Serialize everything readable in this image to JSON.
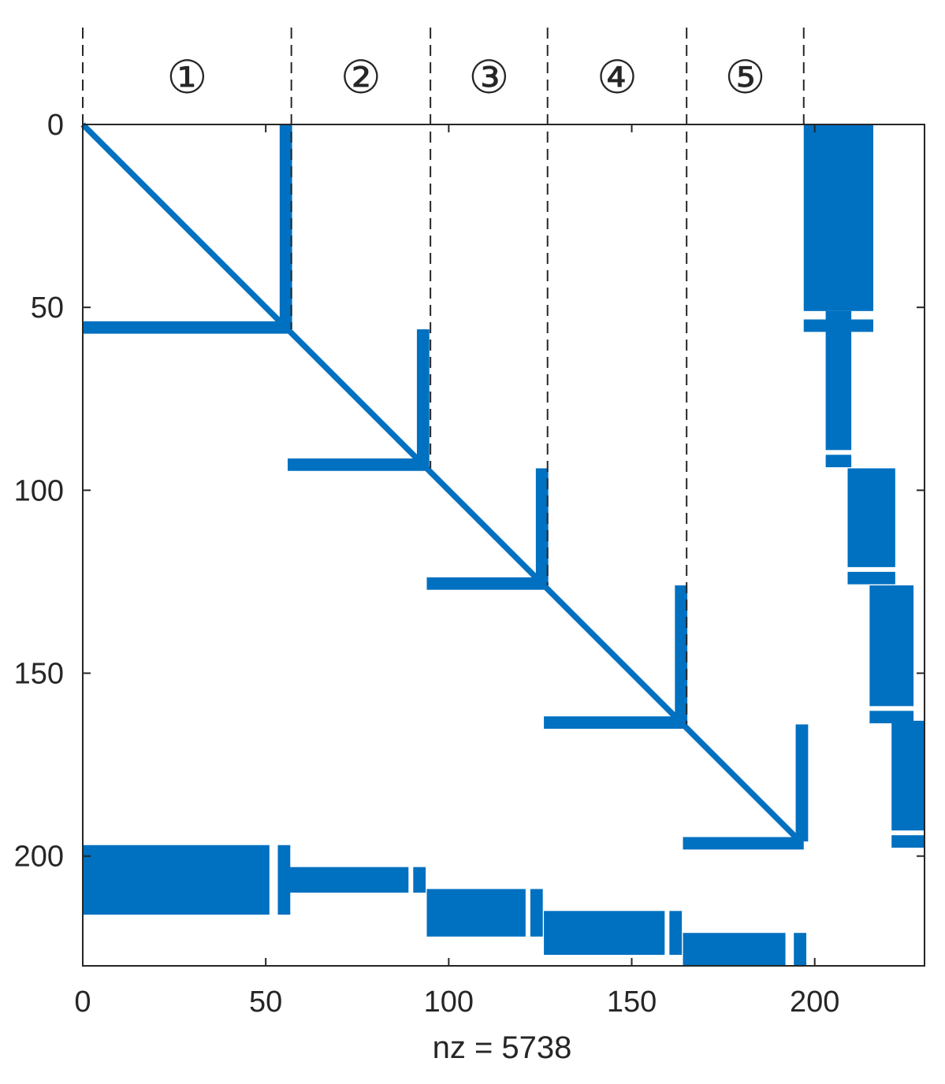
{
  "chart_data": {
    "type": "spy",
    "xlabel": "nz = 5738",
    "xlim": [
      0,
      230
    ],
    "ylim": [
      0,
      230
    ],
    "y_reversed": true,
    "xticks": [
      0,
      50,
      100,
      150,
      200
    ],
    "yticks": [
      0,
      50,
      100,
      150,
      200
    ],
    "xtick_labels": [
      "0",
      "50",
      "100",
      "150",
      "200"
    ],
    "ytick_labels": [
      "0",
      "50",
      "100",
      "150",
      "200"
    ],
    "grid": false,
    "legend": "none",
    "marker_color": "#0070c0",
    "section_boundaries": [
      0,
      57,
      95,
      127,
      165,
      197
    ],
    "section_labels": [
      "①",
      "②",
      "③",
      "④",
      "⑤"
    ],
    "diagonal": {
      "from": 0,
      "to": 196
    },
    "hub_columns": [
      {
        "col": 55.5,
        "row_from": 0,
        "row_to": 56
      },
      {
        "col": 93,
        "row_from": 56,
        "row_to": 94
      },
      {
        "col": 125.5,
        "row_from": 94,
        "row_to": 126
      },
      {
        "col": 163.5,
        "row_from": 126,
        "row_to": 164
      },
      {
        "col": 196.5,
        "row_from": 164,
        "row_to": 196
      }
    ],
    "hub_rows": [
      {
        "row": 55.5,
        "col_from": 0,
        "col_to": 56
      },
      {
        "row": 93,
        "col_from": 56,
        "col_to": 94
      },
      {
        "row": 125.5,
        "col_from": 94,
        "col_to": 126
      },
      {
        "row": 163.5,
        "col_from": 126,
        "col_to": 164
      },
      {
        "row": 196.5,
        "col_from": 164,
        "col_to": 197
      }
    ],
    "right_blocks": [
      {
        "col_from": 197,
        "col_to": 216,
        "row_from": 0,
        "row_to": 51
      },
      {
        "col_from": 203,
        "col_to": 210,
        "row_from": 51,
        "row_to": 89
      },
      {
        "col_from": 209,
        "col_to": 222,
        "row_from": 94,
        "row_to": 121
      },
      {
        "col_from": 215,
        "col_to": 227,
        "row_from": 126,
        "row_to": 159
      },
      {
        "col_from": 221,
        "col_to": 230,
        "row_from": 163,
        "row_to": 193
      }
    ],
    "right_block_strips": [
      {
        "col_from": 197,
        "col_to": 216,
        "row": 55
      },
      {
        "col_from": 203,
        "col_to": 210,
        "row": 92
      },
      {
        "col_from": 209,
        "col_to": 222,
        "row": 124
      },
      {
        "col_from": 215,
        "col_to": 227,
        "row": 162
      },
      {
        "col_from": 221,
        "col_to": 230,
        "row": 196
      }
    ],
    "bottom_blocks": [
      {
        "col_from": 0,
        "col_to": 51,
        "row_from": 197,
        "row_to": 216
      },
      {
        "col_from": 56,
        "col_to": 89,
        "row_from": 203,
        "row_to": 210
      },
      {
        "col_from": 94,
        "col_to": 121,
        "row_from": 209,
        "row_to": 222
      },
      {
        "col_from": 126,
        "col_to": 159,
        "row_from": 215,
        "row_to": 227
      },
      {
        "col_from": 164,
        "col_to": 192,
        "row_from": 221,
        "row_to": 230
      }
    ],
    "bottom_block_strips": [
      {
        "col": 55,
        "row_from": 197,
        "row_to": 216
      },
      {
        "col": 92,
        "row_from": 203,
        "row_to": 210
      },
      {
        "col": 124,
        "row_from": 209,
        "row_to": 222
      },
      {
        "col": 162,
        "row_from": 215,
        "row_to": 227
      },
      {
        "col": 196,
        "row_from": 221,
        "row_to": 230
      }
    ]
  }
}
